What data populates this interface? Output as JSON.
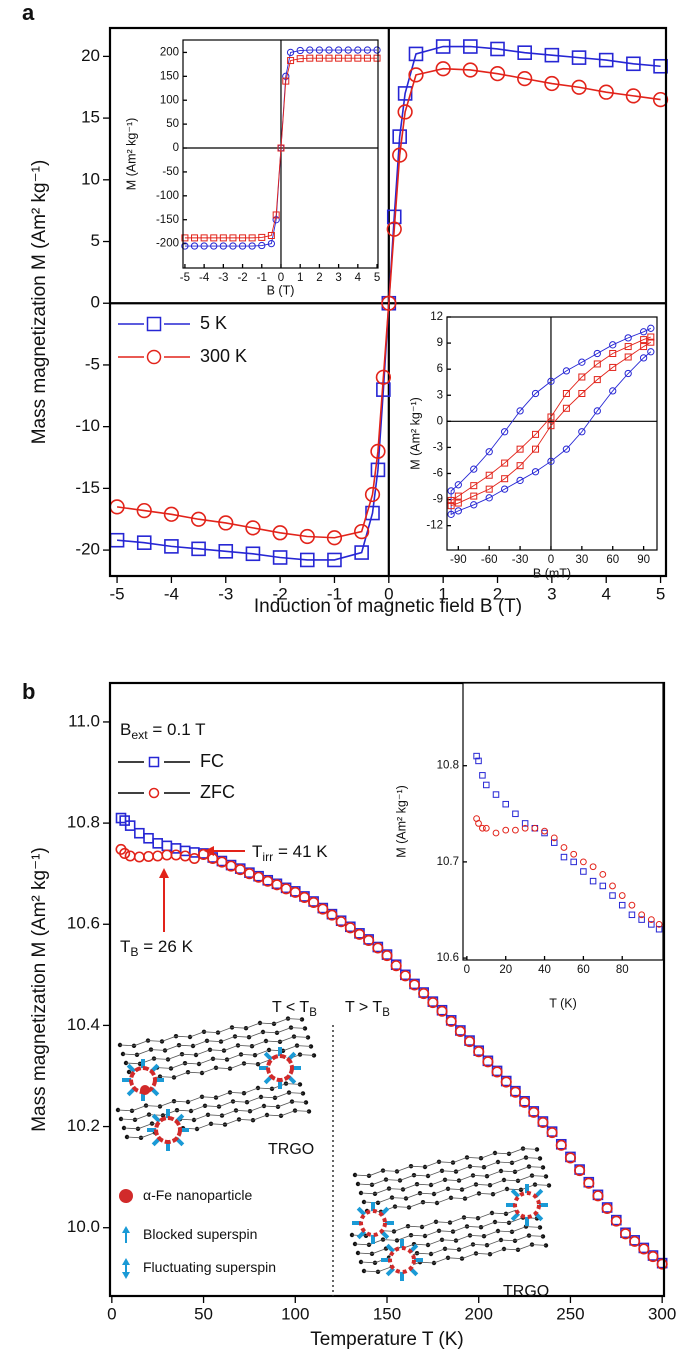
{
  "chart_data": [
    {
      "type": "line",
      "label": "a",
      "xlabel": "Induction of magnetic field B (T)",
      "ylabel": "Mass magnetization M (Am² kg⁻¹)",
      "xlim": [
        -5.13,
        5.1
      ],
      "ylim": [
        -22.1,
        22.3
      ],
      "xticks": [
        -5,
        -4,
        -3,
        -2,
        -1,
        0,
        1,
        2,
        3,
        4,
        5
      ],
      "yticks": [
        -20,
        -15,
        -10,
        -5,
        0,
        5,
        10,
        15,
        20
      ],
      "zero_lines": true,
      "line": true,
      "legend": "middle-left",
      "series": [
        {
          "name": "5 K",
          "color": "#2626d4",
          "marker": "square",
          "x": [
            -5,
            -4.5,
            -4,
            -3.5,
            -3,
            -2.5,
            -2,
            -1.5,
            -1,
            -0.5,
            -0.3,
            -0.2,
            -0.1,
            0,
            0.1,
            0.2,
            0.3,
            0.5,
            1,
            1.5,
            2,
            2.5,
            3,
            3.5,
            4,
            4.5,
            5
          ],
          "values": [
            -19.2,
            -19.4,
            -19.7,
            -19.9,
            -20.1,
            -20.3,
            -20.6,
            -20.8,
            -20.8,
            -20.2,
            -17,
            -13.5,
            -7,
            0,
            7,
            13.5,
            17,
            20.2,
            20.8,
            20.8,
            20.6,
            20.3,
            20.1,
            19.9,
            19.7,
            19.4,
            19.2
          ]
        },
        {
          "name": "300 K",
          "color": "#e2231a",
          "marker": "circle",
          "x": [
            -5,
            -4.5,
            -4,
            -3.5,
            -3,
            -2.5,
            -2,
            -1.5,
            -1,
            -0.5,
            -0.3,
            -0.2,
            -0.1,
            0,
            0.1,
            0.2,
            0.3,
            0.5,
            1,
            1.5,
            2,
            2.5,
            3,
            3.5,
            4,
            4.5,
            5
          ],
          "values": [
            -16.5,
            -16.8,
            -17.1,
            -17.5,
            -17.8,
            -18.2,
            -18.6,
            -18.9,
            -19,
            -18.5,
            -15.5,
            -12,
            -6,
            0,
            6,
            12,
            15.5,
            18.5,
            19,
            18.9,
            18.6,
            18.2,
            17.8,
            17.5,
            17.1,
            16.8,
            16.5
          ]
        }
      ]
    },
    {
      "type": "line",
      "xlabel": "B (T)",
      "ylabel": "M (Am² kg⁻¹)",
      "xlim": [
        -5.1,
        5.05
      ],
      "ylim": [
        -251,
        226
      ],
      "xticks": [
        -5,
        -4,
        -3,
        -2,
        -1,
        0,
        1,
        2,
        3,
        4,
        5
      ],
      "yticks": [
        -200,
        -150,
        -100,
        -50,
        0,
        50,
        100,
        150,
        200
      ],
      "zero_lines": true,
      "line": true,
      "series": [
        {
          "color": "#2626d4",
          "marker": "circle",
          "x": [
            -5,
            -4.5,
            -4,
            -3.5,
            -3,
            -2.5,
            -2,
            -1.5,
            -1,
            -0.5,
            -0.25,
            0,
            0.25,
            0.5,
            1,
            1.5,
            2,
            2.5,
            3,
            3.5,
            4,
            4.5,
            5
          ],
          "values": [
            -205,
            -205,
            -205,
            -205,
            -205,
            -205,
            -205,
            -205,
            -204,
            -200,
            -150,
            0,
            150,
            200,
            204,
            205,
            205,
            205,
            205,
            205,
            205,
            205,
            205
          ]
        },
        {
          "color": "#e2231a",
          "marker": "square",
          "x": [
            -5,
            -4.5,
            -4,
            -3.5,
            -3,
            -2.5,
            -2,
            -1.5,
            -1,
            -0.5,
            -0.25,
            0,
            0.25,
            0.5,
            1,
            1.5,
            2,
            2.5,
            3,
            3.5,
            4,
            4.5,
            5
          ],
          "values": [
            -188,
            -188,
            -188,
            -188,
            -188,
            -188,
            -188,
            -188,
            -187,
            -183,
            -140,
            0,
            140,
            183,
            187,
            188,
            188,
            188,
            188,
            188,
            188,
            188,
            188
          ]
        }
      ]
    },
    {
      "type": "line",
      "xlabel": "B (mT)",
      "ylabel": "M (Am² kg⁻¹)",
      "xlim": [
        -101,
        103
      ],
      "ylim": [
        -14.8,
        12
      ],
      "xticks": [
        -90,
        -60,
        -30,
        0,
        30,
        60,
        90
      ],
      "yticks": [
        -12,
        -9,
        -6,
        -3,
        0,
        3,
        6,
        9,
        12
      ],
      "zero_lines": true,
      "line": true,
      "series": [
        {
          "color": "#2626d4",
          "marker": "circle",
          "x": [
            97,
            90,
            75,
            60,
            45,
            30,
            15,
            0,
            -15,
            -30,
            -45,
            -60,
            -75,
            -90,
            -97,
            -97,
            -90,
            -75,
            -60,
            -45,
            -30,
            -15,
            0,
            15,
            30,
            45,
            60,
            75,
            90,
            97
          ],
          "values": [
            10.7,
            10.3,
            9.6,
            8.8,
            7.8,
            6.8,
            5.8,
            4.6,
            3.2,
            1.2,
            -1.2,
            -3.5,
            -5.5,
            -7.3,
            -8,
            -10.7,
            -10.3,
            -9.6,
            -8.8,
            -7.8,
            -6.8,
            -5.8,
            -4.6,
            -3.2,
            -1.2,
            1.2,
            3.5,
            5.5,
            7.3,
            8
          ]
        },
        {
          "color": "#e2231a",
          "marker": "square",
          "x": [
            97,
            90,
            75,
            60,
            45,
            30,
            15,
            0,
            -15,
            -30,
            -45,
            -60,
            -75,
            -90,
            -97,
            -97,
            -90,
            -75,
            -60,
            -45,
            -30,
            -15,
            0,
            15,
            30,
            45,
            60,
            75,
            90,
            97
          ],
          "values": [
            9.7,
            9.4,
            8.6,
            7.8,
            6.6,
            5.1,
            3.2,
            0.5,
            -1.5,
            -3.2,
            -4.8,
            -6.2,
            -7.4,
            -8.6,
            -9.1,
            -9.7,
            -9.4,
            -8.6,
            -7.8,
            -6.6,
            -5.1,
            -3.2,
            -0.5,
            1.5,
            3.2,
            4.8,
            6.2,
            7.4,
            8.6,
            9.1
          ]
        }
      ]
    },
    {
      "type": "scatter",
      "label": "b",
      "xlabel": "Temperature T (K)",
      "ylabel": "Mass magnetization M (Am² kg⁻¹)",
      "xlim": [
        -1,
        301
      ],
      "ylim": [
        9.865,
        11.077
      ],
      "xticks": [
        0,
        50,
        100,
        150,
        200,
        250,
        300
      ],
      "yticks": [
        {
          "value": 10,
          "label": "10.0"
        },
        10.2,
        10.4,
        10.6,
        10.8,
        {
          "value": 11,
          "label": "11.0"
        }
      ],
      "line": false,
      "legend": "top-left",
      "legend_line_color": "#000000",
      "series": [
        {
          "name": "FC",
          "color": "#2626d4",
          "marker": "square",
          "x": [
            5,
            7,
            10,
            15,
            20,
            25,
            30,
            35,
            40,
            45,
            50,
            55,
            60,
            65,
            70,
            75,
            80,
            85,
            90,
            95,
            100,
            105,
            110,
            115,
            120,
            125,
            130,
            135,
            140,
            145,
            150,
            155,
            160,
            165,
            170,
            175,
            180,
            185,
            190,
            195,
            200,
            205,
            210,
            215,
            220,
            225,
            230,
            235,
            240,
            245,
            250,
            255,
            260,
            265,
            270,
            275,
            280,
            285,
            290,
            295,
            300
          ],
          "values": [
            10.81,
            10.805,
            10.795,
            10.78,
            10.77,
            10.76,
            10.755,
            10.75,
            10.745,
            10.742,
            10.74,
            10.732,
            10.725,
            10.717,
            10.71,
            10.702,
            10.695,
            10.687,
            10.68,
            10.672,
            10.665,
            10.655,
            10.645,
            10.632,
            10.62,
            10.607,
            10.595,
            10.582,
            10.57,
            10.555,
            10.54,
            10.52,
            10.5,
            10.482,
            10.465,
            10.447,
            10.43,
            10.41,
            10.39,
            10.37,
            10.35,
            10.33,
            10.31,
            10.29,
            10.27,
            10.25,
            10.23,
            10.21,
            10.19,
            10.165,
            10.14,
            10.115,
            10.09,
            10.065,
            10.04,
            10.015,
            9.99,
            9.975,
            9.96,
            9.945,
            9.93
          ]
        },
        {
          "name": "ZFC",
          "color": "#e2231a",
          "marker": "circle",
          "x": [
            5,
            7,
            10,
            15,
            20,
            25,
            30,
            35,
            40,
            45,
            50,
            55,
            60,
            65,
            70,
            75,
            80,
            85,
            90,
            95,
            100,
            105,
            110,
            115,
            120,
            125,
            130,
            135,
            140,
            145,
            150,
            155,
            160,
            165,
            170,
            175,
            180,
            185,
            190,
            195,
            200,
            205,
            210,
            215,
            220,
            225,
            230,
            235,
            240,
            245,
            250,
            255,
            260,
            265,
            270,
            275,
            280,
            285,
            290,
            295,
            300
          ],
          "values": [
            10.748,
            10.74,
            10.735,
            10.733,
            10.734,
            10.735,
            10.737,
            10.737,
            10.735,
            10.73,
            10.738,
            10.73,
            10.723,
            10.715,
            10.708,
            10.7,
            10.693,
            10.685,
            10.678,
            10.67,
            10.663,
            10.653,
            10.643,
            10.63,
            10.618,
            10.605,
            10.593,
            10.58,
            10.568,
            10.553,
            10.538,
            10.518,
            10.498,
            10.48,
            10.463,
            10.445,
            10.428,
            10.408,
            10.388,
            10.368,
            10.348,
            10.328,
            10.308,
            10.288,
            10.268,
            10.248,
            10.228,
            10.208,
            10.188,
            10.163,
            10.138,
            10.113,
            10.088,
            10.063,
            10.038,
            10.013,
            9.988,
            9.973,
            9.958,
            9.943,
            9.928
          ]
        }
      ],
      "annotations": [
        {
          "text": "B",
          "sub": "ext",
          "after": " = 0.1 T"
        },
        {
          "text": "T",
          "sub": "irr",
          "after": " = 41 K",
          "color": "#e2231a"
        },
        {
          "text": "T",
          "sub": "B",
          "after": " = 26 K",
          "color": "#e2231a"
        },
        {
          "text": "T < T",
          "sub": "B"
        },
        {
          "text": "T > T",
          "sub": "B"
        },
        {
          "text": "TRGO"
        },
        {
          "text": "TRGO"
        },
        {
          "text": "α-Fe nanoparticle"
        },
        {
          "text": "Blocked superspin"
        },
        {
          "text": "Fluctuating superspin"
        }
      ]
    },
    {
      "type": "scatter",
      "xlabel": "T (K)",
      "ylabel": "M (Am² kg⁻¹)",
      "xlim": [
        -2,
        101
      ],
      "ylim": [
        10.598,
        10.886
      ],
      "xticks": [
        0,
        20,
        40,
        60,
        80
      ],
      "yticks": [
        10.6,
        10.7,
        10.8
      ],
      "line": false,
      "series": [
        {
          "color": "#2626d4",
          "marker": "square",
          "x": [
            5,
            6,
            8,
            10,
            15,
            20,
            25,
            30,
            35,
            40,
            45,
            50,
            55,
            60,
            65,
            70,
            75,
            80,
            85,
            90,
            95,
            99
          ],
          "values": [
            10.81,
            10.805,
            10.79,
            10.78,
            10.77,
            10.76,
            10.75,
            10.74,
            10.735,
            10.73,
            10.72,
            10.705,
            10.7,
            10.69,
            10.68,
            10.675,
            10.665,
            10.655,
            10.645,
            10.64,
            10.635,
            10.63
          ]
        },
        {
          "color": "#e2231a",
          "marker": "circle",
          "x": [
            5,
            6,
            8,
            10,
            15,
            20,
            25,
            30,
            35,
            40,
            45,
            50,
            55,
            60,
            65,
            70,
            75,
            80,
            85,
            90,
            95,
            99
          ],
          "values": [
            10.745,
            10.74,
            10.735,
            10.735,
            10.73,
            10.733,
            10.733,
            10.735,
            10.735,
            10.732,
            10.725,
            10.715,
            10.708,
            10.7,
            10.695,
            10.687,
            10.675,
            10.665,
            10.655,
            10.645,
            10.64,
            10.635
          ]
        }
      ]
    }
  ]
}
